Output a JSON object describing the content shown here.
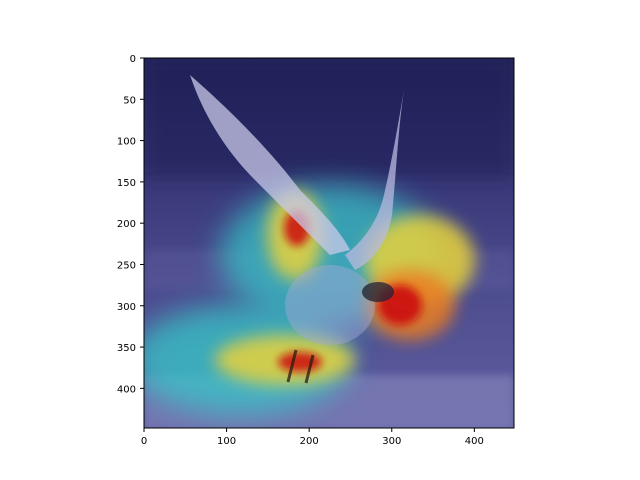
{
  "figure": {
    "image_description": "gull in flight over beach with Grad-CAM style attention heatmap overlay",
    "colormap": "jet",
    "x_axis": {
      "range": [
        0,
        448
      ],
      "ticks": [
        0,
        100,
        200,
        300,
        400
      ]
    },
    "y_axis": {
      "range": [
        0,
        448
      ],
      "inverted": true,
      "ticks": [
        0,
        50,
        100,
        150,
        200,
        250,
        300,
        350,
        400
      ]
    },
    "colors": {
      "background": "#ffffff",
      "axis": "#000000",
      "heat_low": "#1c1c6e",
      "heat_mid": "#35c8c8",
      "heat_warm": "#e8d23a",
      "heat_hot": "#cc1010"
    }
  }
}
